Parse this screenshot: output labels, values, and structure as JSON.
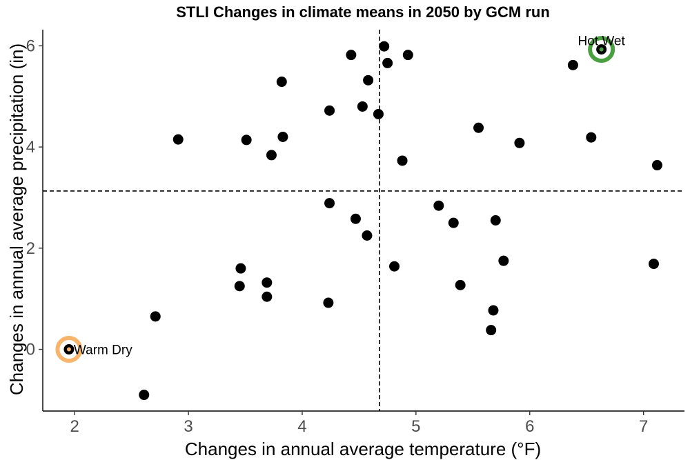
{
  "chart_data": {
    "type": "scatter",
    "title": "STLI Changes in climate means in 2050 by GCM run",
    "xlabel": "Changes in annual average temperature (°F)",
    "ylabel": "Changes in annual average precipitation (in)",
    "xlim": [
      1.72,
      7.36
    ],
    "ylim": [
      -1.22,
      6.32
    ],
    "x_ticks": [
      2,
      3,
      4,
      5,
      6,
      7
    ],
    "y_ticks": [
      0,
      2,
      4,
      6
    ],
    "grid": false,
    "reference_lines": {
      "vertical_x": 4.68,
      "horizontal_y": 3.13,
      "style": "dashed"
    },
    "points": [
      {
        "x": 2.61,
        "y": -0.9
      },
      {
        "x": 2.71,
        "y": 0.65
      },
      {
        "x": 2.91,
        "y": 4.15
      },
      {
        "x": 3.45,
        "y": 1.25
      },
      {
        "x": 3.46,
        "y": 1.6
      },
      {
        "x": 3.51,
        "y": 4.14
      },
      {
        "x": 3.69,
        "y": 1.32
      },
      {
        "x": 3.69,
        "y": 1.04
      },
      {
        "x": 3.73,
        "y": 3.84
      },
      {
        "x": 3.82,
        "y": 5.29
      },
      {
        "x": 3.83,
        "y": 4.2
      },
      {
        "x": 4.23,
        "y": 0.92
      },
      {
        "x": 4.24,
        "y": 4.72
      },
      {
        "x": 4.24,
        "y": 2.89
      },
      {
        "x": 4.43,
        "y": 5.82
      },
      {
        "x": 4.47,
        "y": 2.58
      },
      {
        "x": 4.53,
        "y": 4.8
      },
      {
        "x": 4.57,
        "y": 2.25
      },
      {
        "x": 4.58,
        "y": 5.32
      },
      {
        "x": 4.67,
        "y": 4.65
      },
      {
        "x": 4.72,
        "y": 5.99
      },
      {
        "x": 4.75,
        "y": 5.66
      },
      {
        "x": 4.81,
        "y": 1.64
      },
      {
        "x": 4.88,
        "y": 3.73
      },
      {
        "x": 4.93,
        "y": 5.82
      },
      {
        "x": 5.2,
        "y": 2.84
      },
      {
        "x": 5.33,
        "y": 2.5
      },
      {
        "x": 5.39,
        "y": 1.27
      },
      {
        "x": 5.55,
        "y": 4.38
      },
      {
        "x": 5.66,
        "y": 0.38
      },
      {
        "x": 5.68,
        "y": 0.77
      },
      {
        "x": 5.7,
        "y": 2.55
      },
      {
        "x": 5.77,
        "y": 1.75
      },
      {
        "x": 5.91,
        "y": 4.08
      },
      {
        "x": 6.38,
        "y": 5.62
      },
      {
        "x": 6.54,
        "y": 4.19
      },
      {
        "x": 7.09,
        "y": 1.69
      },
      {
        "x": 7.12,
        "y": 3.64
      }
    ],
    "highlighted": [
      {
        "label": "Hot Wet",
        "x": 6.63,
        "y": 5.93,
        "color": "#4aa040"
      },
      {
        "label": "Warm Dry",
        "x": 1.95,
        "y": 0.0,
        "color": "#f8b46a"
      }
    ],
    "colors": {
      "points": "#000000"
    }
  }
}
